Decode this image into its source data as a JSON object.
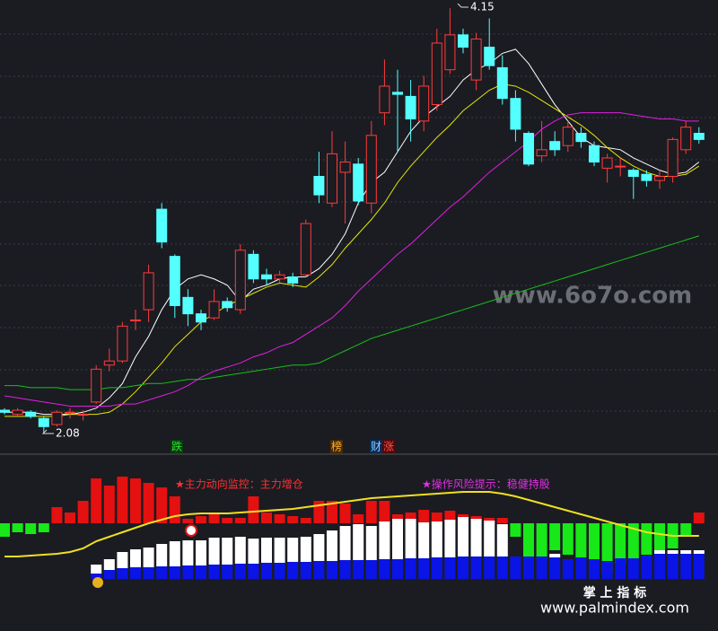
{
  "chart_data": [
    {
      "type": "candlestick",
      "ylim": [
        1.98,
        4.19
      ],
      "open": [
        2.19,
        2.17,
        2.18,
        2.15,
        2.12,
        2.18,
        2.17,
        2.23,
        2.41,
        2.43,
        2.63,
        2.68,
        3.17,
        2.94,
        2.74,
        2.66,
        2.64,
        2.72,
        2.68,
        2.95,
        2.85,
        2.83,
        2.84,
        2.85,
        3.33,
        3.2,
        3.35,
        3.39,
        3.2,
        3.64,
        3.74,
        3.72,
        3.6,
        3.68,
        3.85,
        4.02,
        3.8,
        3.96,
        3.86,
        3.71,
        3.54,
        3.43,
        3.5,
        3.48,
        3.54,
        3.48,
        3.37,
        3.38,
        3.36,
        3.34,
        3.31,
        3.33,
        3.46,
        3.54
      ],
      "high": [
        2.2,
        2.2,
        2.19,
        2.16,
        2.19,
        2.2,
        2.19,
        2.41,
        2.49,
        2.62,
        2.68,
        2.9,
        3.2,
        2.95,
        2.78,
        2.68,
        2.78,
        2.74,
        3.0,
        2.97,
        2.88,
        2.87,
        2.86,
        3.12,
        3.45,
        3.55,
        3.5,
        3.42,
        3.6,
        3.9,
        3.85,
        3.8,
        3.82,
        4.05,
        4.15,
        4.05,
        4.03,
        4.1,
        3.92,
        3.75,
        3.55,
        3.6,
        3.55,
        3.6,
        3.57,
        3.5,
        3.44,
        3.42,
        3.37,
        3.36,
        3.36,
        3.52,
        3.6,
        3.57
      ],
      "low": [
        2.17,
        2.16,
        2.15,
        2.08,
        2.11,
        2.15,
        2.14,
        2.22,
        2.38,
        2.42,
        2.58,
        2.62,
        2.98,
        2.64,
        2.6,
        2.58,
        2.63,
        2.67,
        2.66,
        2.81,
        2.8,
        2.81,
        2.79,
        2.84,
        3.2,
        3.18,
        3.1,
        3.19,
        3.15,
        3.58,
        3.45,
        3.5,
        3.55,
        3.65,
        3.83,
        3.93,
        3.75,
        3.85,
        3.68,
        3.5,
        3.38,
        3.4,
        3.43,
        3.45,
        3.47,
        3.38,
        3.3,
        3.33,
        3.22,
        3.28,
        3.27,
        3.3,
        3.44,
        3.49
      ],
      "close": [
        2.18,
        2.19,
        2.16,
        2.11,
        2.18,
        2.18,
        2.17,
        2.39,
        2.43,
        2.6,
        2.63,
        2.86,
        3.01,
        2.7,
        2.66,
        2.62,
        2.72,
        2.69,
        2.97,
        2.83,
        2.83,
        2.85,
        2.81,
        3.1,
        3.24,
        3.44,
        3.4,
        3.21,
        3.53,
        3.77,
        3.73,
        3.61,
        3.77,
        3.98,
        4.02,
        3.96,
        4.0,
        3.87,
        3.71,
        3.56,
        3.39,
        3.46,
        3.46,
        3.57,
        3.5,
        3.4,
        3.42,
        3.38,
        3.33,
        3.31,
        3.33,
        3.51,
        3.57,
        3.51
      ],
      "up_color": "#ff3b3b",
      "down_color": "#54ffff",
      "series": [
        {
          "color": "#ffffff",
          "values": [
            2.18,
            2.18,
            2.18,
            2.17,
            2.17,
            2.17,
            2.18,
            2.2,
            2.25,
            2.32,
            2.45,
            2.55,
            2.68,
            2.78,
            2.83,
            2.85,
            2.83,
            2.8,
            2.72,
            2.78,
            2.8,
            2.83,
            2.84,
            2.84,
            2.88,
            2.95,
            3.05,
            3.2,
            3.3,
            3.35,
            3.45,
            3.55,
            3.62,
            3.67,
            3.72,
            3.8,
            3.85,
            3.88,
            3.93,
            3.95,
            3.88,
            3.78,
            3.68,
            3.6,
            3.52,
            3.48,
            3.47,
            3.46,
            3.42,
            3.39,
            3.36,
            3.34,
            3.35,
            3.4
          ]
        },
        {
          "color": "#e6e600",
          "values": [
            2.16,
            2.16,
            2.16,
            2.16,
            2.16,
            2.17,
            2.17,
            2.17,
            2.18,
            2.22,
            2.28,
            2.35,
            2.42,
            2.5,
            2.56,
            2.62,
            2.66,
            2.7,
            2.73,
            2.76,
            2.79,
            2.81,
            2.8,
            2.79,
            2.84,
            2.9,
            2.98,
            3.05,
            3.12,
            3.2,
            3.3,
            3.38,
            3.45,
            3.52,
            3.58,
            3.65,
            3.7,
            3.75,
            3.78,
            3.77,
            3.74,
            3.7,
            3.66,
            3.62,
            3.58,
            3.53,
            3.47,
            3.42,
            3.38,
            3.35,
            3.33,
            3.33,
            3.34,
            3.38
          ]
        },
        {
          "color": "#e020e0",
          "values": [
            2.26,
            2.25,
            2.24,
            2.23,
            2.22,
            2.21,
            2.21,
            2.21,
            2.21,
            2.22,
            2.22,
            2.24,
            2.26,
            2.28,
            2.31,
            2.35,
            2.38,
            2.4,
            2.42,
            2.45,
            2.47,
            2.5,
            2.52,
            2.56,
            2.6,
            2.64,
            2.7,
            2.77,
            2.83,
            2.89,
            2.95,
            3.0,
            3.06,
            3.12,
            3.18,
            3.23,
            3.29,
            3.35,
            3.4,
            3.45,
            3.5,
            3.56,
            3.6,
            3.63,
            3.64,
            3.64,
            3.64,
            3.64,
            3.63,
            3.62,
            3.61,
            3.61,
            3.6,
            3.6
          ]
        },
        {
          "color": "#18c018",
          "values": [
            2.31,
            2.31,
            2.3,
            2.3,
            2.3,
            2.29,
            2.29,
            2.29,
            2.3,
            2.3,
            2.31,
            2.32,
            2.32,
            2.33,
            2.34,
            2.34,
            2.35,
            2.36,
            2.37,
            2.38,
            2.39,
            2.4,
            2.41,
            2.41,
            2.42,
            2.45,
            2.48,
            2.51,
            2.54,
            2.56,
            2.58,
            2.6,
            2.62,
            2.64,
            2.66,
            2.68,
            2.7,
            2.72,
            2.74,
            2.76,
            2.78,
            2.8,
            2.82,
            2.84,
            2.86,
            2.88,
            2.9,
            2.92,
            2.94,
            2.96,
            2.98,
            3.0,
            3.02,
            3.04
          ]
        }
      ],
      "annotations": {
        "high": "4.15",
        "low": "2.08",
        "tags": [
          "跌",
          "榜",
          "财",
          "涨"
        ]
      }
    },
    {
      "type": "bar",
      "ylim": [
        0,
        140
      ],
      "flow": [
        -15,
        -10,
        -12,
        -10,
        18,
        12,
        25,
        50,
        42,
        52,
        50,
        45,
        40,
        30,
        5,
        8,
        10,
        6,
        6,
        30,
        12,
        10,
        8,
        6,
        25,
        25,
        22,
        10,
        25,
        25,
        10,
        12,
        15,
        12,
        14,
        10,
        8,
        6,
        6,
        -15,
        -50,
        -40,
        -30,
        -35,
        -40,
        -48,
        -55,
        -45,
        -40,
        -35,
        -30,
        -28,
        -15,
        12
      ],
      "flow_colors": [
        "#e51010",
        "#18e818"
      ],
      "blue": [
        0,
        0,
        0,
        0,
        0,
        0,
        0,
        6,
        10,
        12,
        13,
        13,
        14,
        14,
        15,
        15,
        16,
        16,
        17,
        17,
        18,
        18,
        19,
        19,
        20,
        20,
        21,
        21,
        21,
        22,
        22,
        23,
        23,
        24,
        24,
        25,
        25,
        25,
        25,
        25,
        25,
        25,
        24,
        22,
        24,
        22,
        20,
        23,
        23,
        26,
        28,
        28,
        28,
        28
      ],
      "white": [
        0,
        0,
        0,
        0,
        0,
        0,
        0,
        10,
        12,
        18,
        20,
        22,
        25,
        28,
        28,
        28,
        30,
        30,
        30,
        28,
        28,
        28,
        27,
        28,
        30,
        34,
        38,
        40,
        38,
        42,
        45,
        44,
        40,
        40,
        42,
        44,
        42,
        40,
        36,
        0,
        0,
        0,
        4,
        0,
        0,
        0,
        0,
        0,
        0,
        0,
        4,
        4,
        4,
        4
      ],
      "line": [
        25,
        25,
        26,
        27,
        28,
        30,
        34,
        42,
        47,
        52,
        57,
        62,
        66,
        70,
        72,
        73,
        73,
        73,
        74,
        75,
        76,
        77,
        78,
        80,
        82,
        84,
        86,
        88,
        90,
        91,
        92,
        93,
        94,
        95,
        96,
        97,
        97,
        97,
        95,
        92,
        88,
        84,
        80,
        76,
        72,
        68,
        64,
        60,
        56,
        52,
        50,
        48,
        48,
        48
      ],
      "annotations": [
        "★主力动向监控：主力增仓",
        "★操作风险提示：稳健持股"
      ]
    }
  ],
  "footer": {
    "title": "掌 上 指 标",
    "url": "www.palmindex.com",
    "watermark": "www.6o7o.com"
  }
}
